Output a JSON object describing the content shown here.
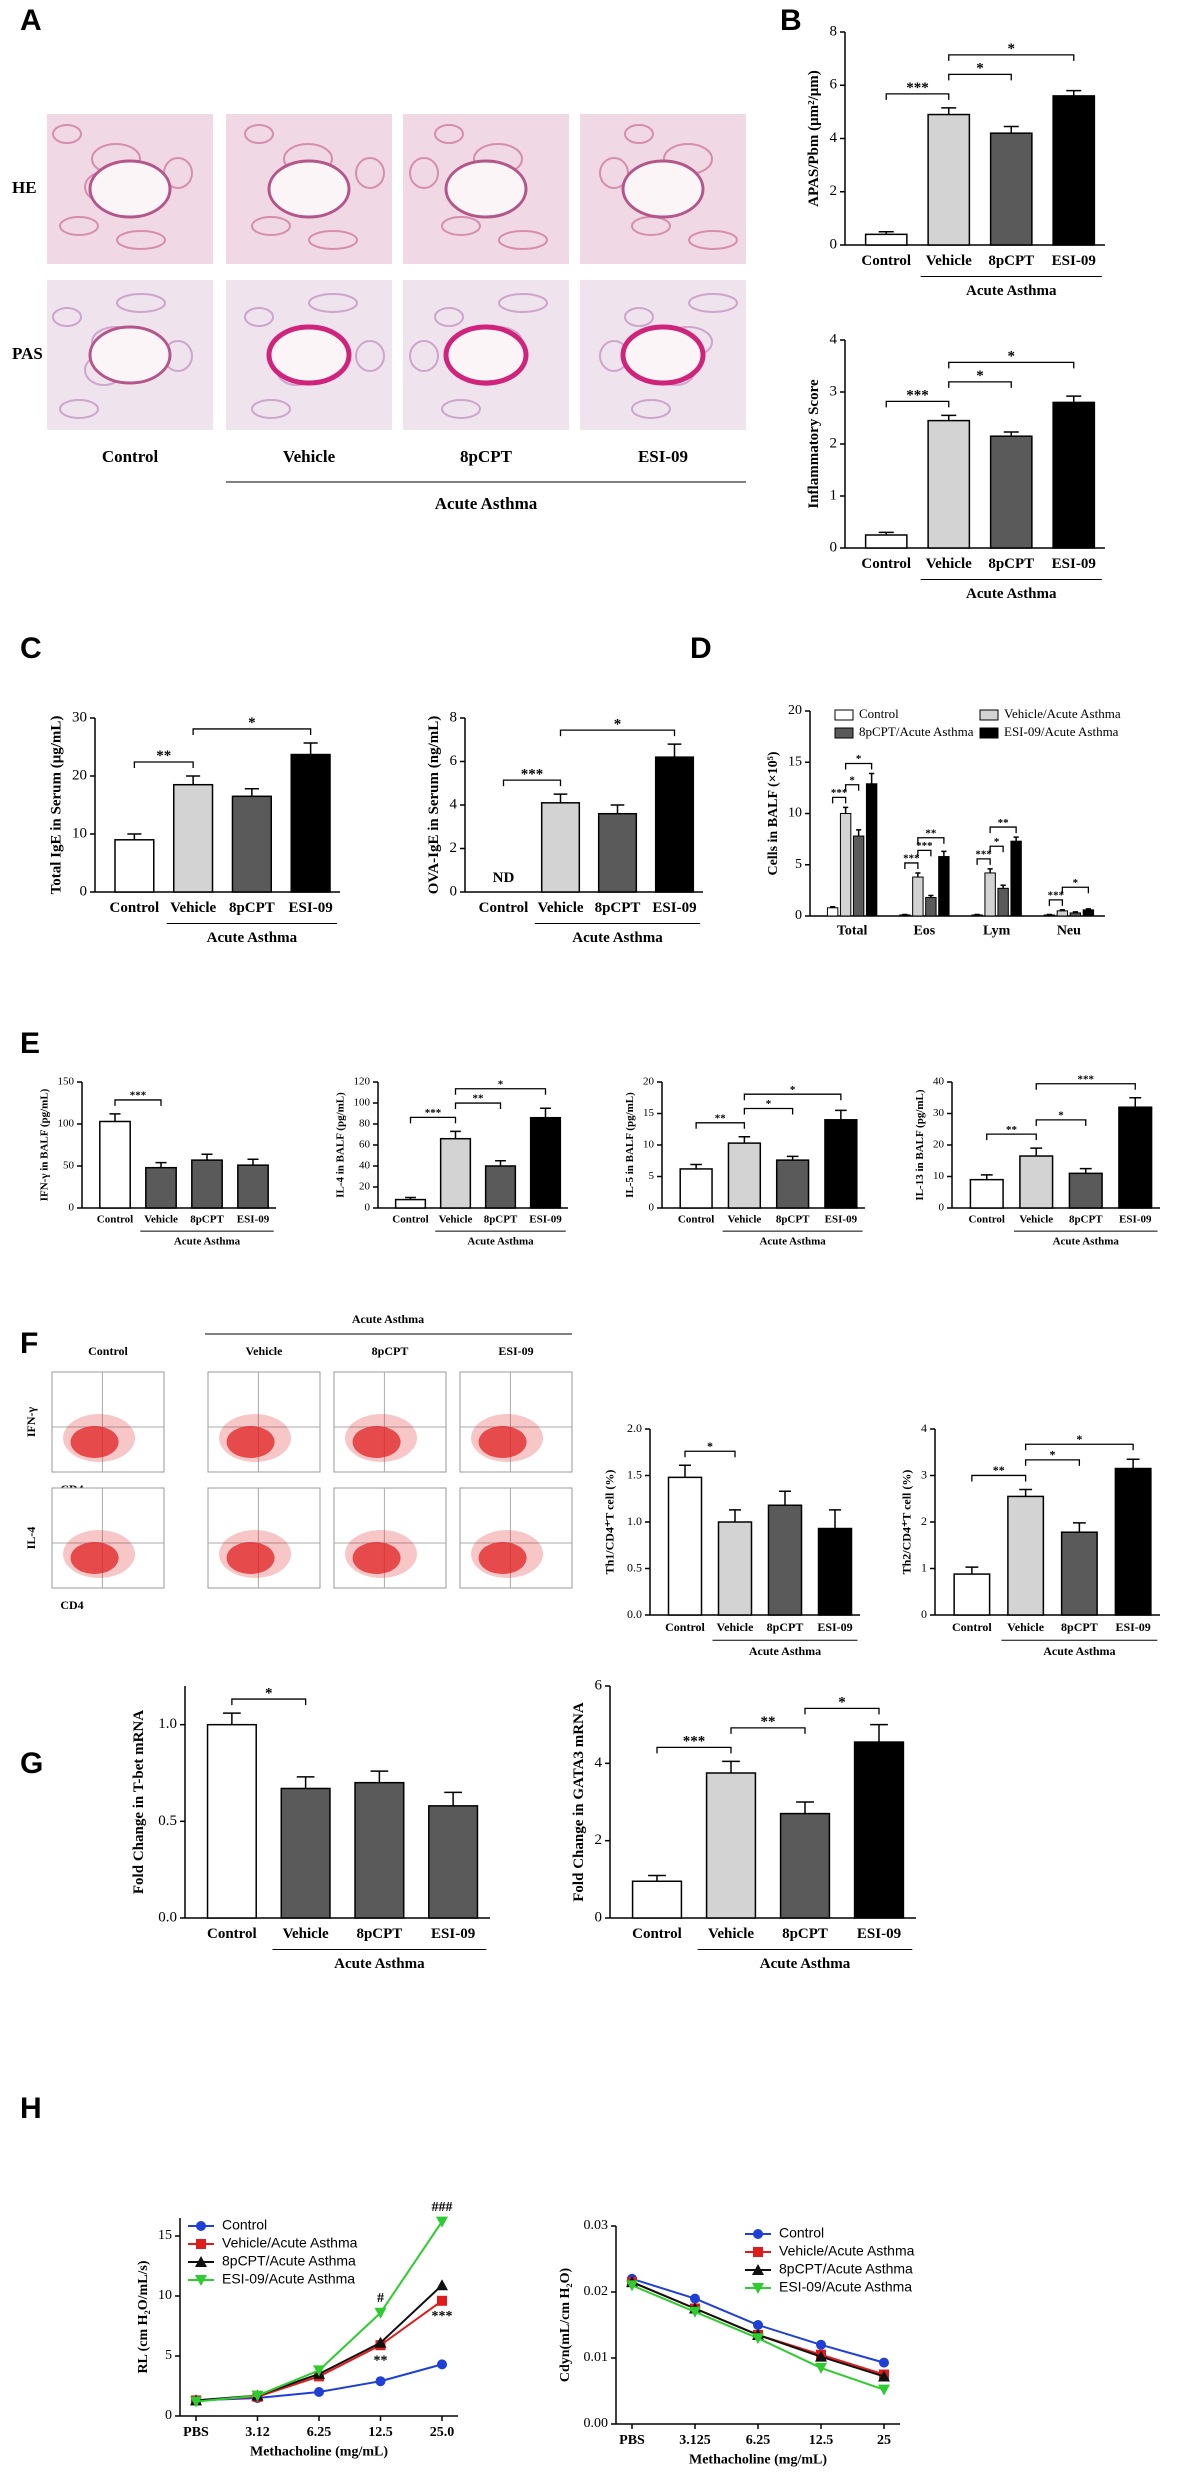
{
  "panel_letters": [
    "A",
    "B",
    "C",
    "D",
    "E",
    "F",
    "G",
    "H"
  ],
  "histology": {
    "row_labels": [
      "HE",
      "PAS"
    ],
    "column_labels": [
      "Control",
      "Vehicle",
      "8pCPT",
      "ESI-09"
    ],
    "group_label": "Acute Asthma"
  },
  "flow_cytometry": {
    "column_labels": [
      "Control",
      "Vehicle",
      "8pCPT",
      "ESI-09"
    ],
    "group_label": "Acute Asthma",
    "row_labels": [
      "IFN-γ",
      "IL-4"
    ],
    "x_label": "CD4"
  },
  "chart_data": [
    {
      "type": "bar",
      "y_label": "APAS/Pbm (μm²/μm)",
      "categories": [
        "Control",
        "Vehicle",
        "8pCPT",
        "ESI-09"
      ],
      "values": [
        0.4,
        4.9,
        4.2,
        5.6
      ],
      "errors": [
        0.1,
        0.25,
        0.25,
        0.2
      ],
      "colors": [
        "#ffffff",
        "#d3d3d3",
        "#5a5a5a",
        "#000000"
      ],
      "ylim": [
        0,
        8
      ],
      "yticks": [
        0,
        2,
        4,
        6,
        8
      ],
      "group_label": "Acute Asthma",
      "significance": [
        {
          "label": "***",
          "categories": [
            "Control",
            "Vehicle"
          ]
        },
        {
          "label": "*",
          "categories": [
            "Vehicle",
            "8pCPT"
          ]
        },
        {
          "label": "*",
          "categories": [
            "Vehicle",
            "ESI-09"
          ]
        }
      ]
    },
    {
      "type": "bar",
      "y_label": "Inflammatory Score",
      "categories": [
        "Control",
        "Vehicle",
        "8pCPT",
        "ESI-09"
      ],
      "values": [
        0.25,
        2.45,
        2.15,
        2.8
      ],
      "errors": [
        0.05,
        0.1,
        0.08,
        0.12
      ],
      "colors": [
        "#ffffff",
        "#d3d3d3",
        "#5a5a5a",
        "#000000"
      ],
      "ylim": [
        0,
        4
      ],
      "yticks": [
        0,
        1,
        2,
        3,
        4
      ],
      "group_label": "Acute Asthma",
      "significance": [
        {
          "label": "***",
          "categories": [
            "Control",
            "Vehicle"
          ]
        },
        {
          "label": "*",
          "categories": [
            "Vehicle",
            "8pCPT"
          ]
        },
        {
          "label": "*",
          "categories": [
            "Vehicle",
            "ESI-09"
          ]
        }
      ]
    },
    {
      "type": "bar",
      "y_label": "Total IgE in Serum (μg/mL)",
      "categories": [
        "Control",
        "Vehicle",
        "8pCPT",
        "ESI-09"
      ],
      "values": [
        9,
        18.5,
        16.5,
        23.7
      ],
      "errors": [
        1,
        1.5,
        1.3,
        2
      ],
      "colors": [
        "#ffffff",
        "#d3d3d3",
        "#5a5a5a",
        "#000000"
      ],
      "ylim": [
        0,
        30
      ],
      "yticks": [
        0,
        10,
        20,
        30
      ],
      "group_label": "Acute Asthma",
      "significance": [
        {
          "label": "**",
          "categories": [
            "Control",
            "Vehicle"
          ]
        },
        {
          "label": "*",
          "categories": [
            "Vehicle",
            "ESI-09"
          ]
        }
      ]
    },
    {
      "type": "bar",
      "y_label": "OVA-IgE in Serum (ng/mL)",
      "categories": [
        "Control",
        "Vehicle",
        "8pCPT",
        "ESI-09"
      ],
      "values": [
        null,
        4.1,
        3.6,
        6.2
      ],
      "value_labels": [
        "ND",
        null,
        null,
        null
      ],
      "errors": [
        null,
        0.4,
        0.4,
        0.6
      ],
      "colors": [
        "#ffffff",
        "#d3d3d3",
        "#5a5a5a",
        "#000000"
      ],
      "ylim": [
        0,
        8
      ],
      "yticks": [
        0,
        2,
        4,
        6,
        8
      ],
      "group_label": "Acute Asthma",
      "significance": [
        {
          "label": "***",
          "categories": [
            "Control",
            "Vehicle"
          ]
        },
        {
          "label": "*",
          "categories": [
            "Vehicle",
            "ESI-09"
          ]
        }
      ]
    },
    {
      "type": "grouped_bar",
      "y_label": "Cells in BALF (×10⁵)",
      "categories": [
        "Total",
        "Eos",
        "Lym",
        "Neu"
      ],
      "ylim": [
        0,
        20
      ],
      "yticks": [
        0,
        5,
        10,
        15,
        20
      ],
      "series": [
        {
          "name": "Control",
          "color": "#ffffff",
          "values": [
            0.8,
            0.1,
            0.1,
            0.1
          ],
          "errors": [
            0.1,
            0.05,
            0.05,
            0.05
          ]
        },
        {
          "name": "Vehicle/Acute Asthma",
          "color": "#d3d3d3",
          "values": [
            10,
            3.8,
            4.2,
            0.5
          ],
          "errors": [
            0.6,
            0.4,
            0.4,
            0.1
          ]
        },
        {
          "name": "8pCPT/Acute Asthma",
          "color": "#5a5a5a",
          "values": [
            7.8,
            1.8,
            2.7,
            0.3
          ],
          "errors": [
            0.6,
            0.2,
            0.3,
            0.1
          ]
        },
        {
          "name": "ESI-09/Acute Asthma",
          "color": "#000000",
          "values": [
            12.9,
            5.8,
            7.3,
            0.6
          ],
          "errors": [
            1,
            0.5,
            0.4,
            0.1
          ]
        }
      ],
      "significance": [
        {
          "label": "***",
          "category": "Total",
          "series": [
            "Control",
            "Vehicle/Acute Asthma"
          ]
        },
        {
          "label": "*",
          "category": "Total",
          "series": [
            "Vehicle/Acute Asthma",
            "8pCPT/Acute Asthma"
          ]
        },
        {
          "label": "*",
          "category": "Total",
          "series": [
            "Vehicle/Acute Asthma",
            "ESI-09/Acute Asthma"
          ]
        },
        {
          "label": "***",
          "category": "Eos",
          "series": [
            "Control",
            "Vehicle/Acute Asthma"
          ]
        },
        {
          "label": "***",
          "category": "Eos",
          "series": [
            "Vehicle/Acute Asthma",
            "8pCPT/Acute Asthma"
          ]
        },
        {
          "label": "**",
          "category": "Eos",
          "series": [
            "Vehicle/Acute Asthma",
            "ESI-09/Acute Asthma"
          ]
        },
        {
          "label": "***",
          "category": "Lym",
          "series": [
            "Control",
            "Vehicle/Acute Asthma"
          ]
        },
        {
          "label": "*",
          "category": "Lym",
          "series": [
            "Vehicle/Acute Asthma",
            "8pCPT/Acute Asthma"
          ]
        },
        {
          "label": "**",
          "category": "Lym",
          "series": [
            "Vehicle/Acute Asthma",
            "ESI-09/Acute Asthma"
          ]
        },
        {
          "label": "***",
          "category": "Neu",
          "series": [
            "Control",
            "Vehicle/Acute Asthma"
          ]
        },
        {
          "label": "*",
          "category": "Neu",
          "series": [
            "Vehicle/Acute Asthma",
            "ESI-09/Acute Asthma"
          ]
        }
      ]
    },
    {
      "type": "bar",
      "y_label": "IFN-γ in BALF (pg/mL)",
      "categories": [
        "Control",
        "Vehicle",
        "8pCPT",
        "ESI-09"
      ],
      "values": [
        103,
        48,
        57,
        51
      ],
      "errors": [
        9,
        6,
        7,
        7
      ],
      "colors": [
        "#ffffff",
        "#5a5a5a",
        "#5a5a5a",
        "#5a5a5a"
      ],
      "ylim": [
        0,
        150
      ],
      "yticks": [
        0,
        50,
        100,
        150
      ],
      "group_label": "Acute Asthma",
      "significance": [
        {
          "label": "***",
          "categories": [
            "Control",
            "Vehicle"
          ]
        }
      ]
    },
    {
      "type": "bar",
      "y_label": "IL-4 in BALF (pg/mL)",
      "categories": [
        "Control",
        "Vehicle",
        "8pCPT",
        "ESI-09"
      ],
      "values": [
        8,
        66,
        40,
        86
      ],
      "errors": [
        2,
        7,
        5,
        9
      ],
      "colors": [
        "#ffffff",
        "#d3d3d3",
        "#5a5a5a",
        "#000000"
      ],
      "ylim": [
        0,
        120
      ],
      "yticks": [
        0,
        20,
        40,
        60,
        80,
        100,
        120
      ],
      "group_label": "Acute Asthma",
      "significance": [
        {
          "label": "***",
          "categories": [
            "Control",
            "Vehicle"
          ]
        },
        {
          "label": "**",
          "categories": [
            "Vehicle",
            "8pCPT"
          ]
        },
        {
          "label": "*",
          "categories": [
            "Vehicle",
            "ESI-09"
          ]
        }
      ]
    },
    {
      "type": "bar",
      "y_label": "IL-5 in BALF (pg/mL)",
      "categories": [
        "Control",
        "Vehicle",
        "8pCPT",
        "ESI-09"
      ],
      "values": [
        6.2,
        10.3,
        7.6,
        14
      ],
      "errors": [
        0.7,
        1,
        0.6,
        1.5
      ],
      "colors": [
        "#ffffff",
        "#d3d3d3",
        "#5a5a5a",
        "#000000"
      ],
      "ylim": [
        0,
        20
      ],
      "yticks": [
        0,
        5,
        10,
        15,
        20
      ],
      "group_label": "Acute Asthma",
      "significance": [
        {
          "label": "**",
          "categories": [
            "Control",
            "Vehicle"
          ]
        },
        {
          "label": "*",
          "categories": [
            "Vehicle",
            "8pCPT"
          ]
        },
        {
          "label": "*",
          "categories": [
            "Vehicle",
            "ESI-09"
          ]
        }
      ]
    },
    {
      "type": "bar",
      "y_label": "IL-13 in BALF (pg/mL)",
      "categories": [
        "Control",
        "Vehicle",
        "8pCPT",
        "ESI-09"
      ],
      "values": [
        9,
        16.5,
        11,
        32
      ],
      "errors": [
        1.5,
        2.5,
        1.5,
        3
      ],
      "colors": [
        "#ffffff",
        "#d3d3d3",
        "#5a5a5a",
        "#000000"
      ],
      "ylim": [
        0,
        40
      ],
      "yticks": [
        0,
        10,
        20,
        30,
        40
      ],
      "group_label": "Acute Asthma",
      "significance": [
        {
          "label": "**",
          "categories": [
            "Control",
            "Vehicle"
          ]
        },
        {
          "label": "*",
          "categories": [
            "Vehicle",
            "8pCPT"
          ]
        },
        {
          "label": "***",
          "categories": [
            "Vehicle",
            "ESI-09"
          ]
        }
      ]
    },
    {
      "type": "bar",
      "y_label": "Th1/CD4⁺T cell (%)",
      "categories": [
        "Control",
        "Vehicle",
        "8pCPT",
        "ESI-09"
      ],
      "values": [
        1.48,
        1.0,
        1.18,
        0.93
      ],
      "errors": [
        0.13,
        0.13,
        0.15,
        0.2
      ],
      "colors": [
        "#ffffff",
        "#d3d3d3",
        "#5a5a5a",
        "#000000"
      ],
      "ylim": [
        0,
        2
      ],
      "yticks": [
        {
          "value": 0,
          "label": "0.0"
        },
        0.5,
        {
          "value": 1,
          "label": "1.0"
        },
        1.5,
        {
          "value": 2,
          "label": "2.0"
        }
      ],
      "group_label": "Acute Asthma",
      "significance": [
        {
          "label": "*",
          "categories": [
            "Control",
            "Vehicle"
          ]
        }
      ]
    },
    {
      "type": "bar",
      "y_label": "Th2/CD4⁺T cell (%)",
      "categories": [
        "Control",
        "Vehicle",
        "8pCPT",
        "ESI-09"
      ],
      "values": [
        0.88,
        2.55,
        1.78,
        3.15
      ],
      "errors": [
        0.15,
        0.15,
        0.2,
        0.2
      ],
      "colors": [
        "#ffffff",
        "#d3d3d3",
        "#5a5a5a",
        "#000000"
      ],
      "ylim": [
        0,
        4
      ],
      "yticks": [
        0,
        1,
        2,
        3,
        4
      ],
      "group_label": "Acute Asthma",
      "significance": [
        {
          "label": "**",
          "categories": [
            "Control",
            "Vehicle"
          ]
        },
        {
          "label": "*",
          "categories": [
            "Vehicle",
            "8pCPT"
          ]
        },
        {
          "label": "*",
          "categories": [
            "Vehicle",
            "ESI-09"
          ]
        }
      ]
    },
    {
      "type": "bar",
      "y_label": "Fold Change in T-bet mRNA",
      "categories": [
        "Control",
        "Vehicle",
        "8pCPT",
        "ESI-09"
      ],
      "values": [
        1.0,
        0.67,
        0.7,
        0.58
      ],
      "errors": [
        0.06,
        0.06,
        0.06,
        0.07
      ],
      "colors": [
        "#ffffff",
        "#5a5a5a",
        "#5a5a5a",
        "#5a5a5a"
      ],
      "ylim": [
        0,
        1.2
      ],
      "yticks": [
        {
          "value": 0,
          "label": "0.0"
        },
        0.5,
        {
          "value": 1,
          "label": "1.0"
        }
      ],
      "group_label": "Acute Asthma",
      "significance": [
        {
          "label": "*",
          "categories": [
            "Control",
            "Vehicle"
          ]
        }
      ]
    },
    {
      "type": "bar",
      "y_label": "Fold Change in GATA3 mRNA",
      "categories": [
        "Control",
        "Vehicle",
        "8pCPT",
        "ESI-09"
      ],
      "values": [
        0.95,
        3.75,
        2.7,
        4.55
      ],
      "errors": [
        0.15,
        0.3,
        0.3,
        0.45
      ],
      "colors": [
        "#ffffff",
        "#d3d3d3",
        "#5a5a5a",
        "#000000"
      ],
      "ylim": [
        0,
        6
      ],
      "yticks": [
        0,
        2,
        4,
        6
      ],
      "group_label": "Acute Asthma",
      "significance": [
        {
          "label": "***",
          "categories": [
            "Control",
            "Vehicle"
          ]
        },
        {
          "label": "**",
          "categories": [
            "Vehicle",
            "8pCPT"
          ]
        },
        {
          "label": "*",
          "categories": [
            "8pCPT",
            "ESI-09"
          ]
        }
      ]
    },
    {
      "type": "line",
      "y_label": "RL (cm H₂O/mL/s)",
      "x_label": "Methacholine (mg/mL)",
      "categories": [
        "PBS",
        "3.12",
        "6.25",
        "12.5",
        "25.0"
      ],
      "ylim": [
        0,
        16.5
      ],
      "yticks": [
        0,
        5,
        10,
        15
      ],
      "legend": "upper left",
      "series": [
        {
          "name": "Control",
          "color": "#1f3fd6",
          "marker": "circle",
          "values": [
            1.3,
            1.5,
            2.0,
            2.9,
            4.3
          ]
        },
        {
          "name": "Vehicle/Acute Asthma",
          "color": "#e01b1b",
          "marker": "square",
          "values": [
            1.3,
            1.6,
            3.3,
            5.9,
            9.6
          ]
        },
        {
          "name": "8pCPT/Acute Asthma",
          "color": "#111111",
          "marker": "triangle",
          "values": [
            1.3,
            1.7,
            3.5,
            6.1,
            10.9
          ]
        },
        {
          "name": "ESI-09/Acute Asthma",
          "color": "#2ecc2e",
          "marker": "triangle-down",
          "values": [
            1.2,
            1.7,
            3.8,
            8.6,
            16.2
          ]
        }
      ],
      "annotations": [
        {
          "label": "#",
          "series": 3,
          "index": 3,
          "position": "above"
        },
        {
          "label": "**",
          "series": 1,
          "index": 3,
          "position": "below"
        },
        {
          "label": "###",
          "series": 3,
          "index": 4,
          "position": "above"
        },
        {
          "label": "***",
          "series": 1,
          "index": 4,
          "position": "below"
        }
      ]
    },
    {
      "type": "line",
      "y_label": "Cdyn(mL/cm H₂O)",
      "x_label": "Methacholine (mg/mL)",
      "categories": [
        "PBS",
        "3.125",
        "6.25",
        "12.5",
        "25"
      ],
      "ylim": [
        0,
        0.03
      ],
      "yticks": [
        {
          "value": 0,
          "label": "0.00"
        },
        0.01,
        0.02,
        0.03
      ],
      "legend": "upper right",
      "series": [
        {
          "name": "Control",
          "color": "#1f3fd6",
          "marker": "circle",
          "values": [
            0.022,
            0.019,
            0.015,
            0.012,
            0.0093
          ]
        },
        {
          "name": "Vehicle/Acute Asthma",
          "color": "#e01b1b",
          "marker": "square",
          "values": [
            0.0215,
            0.0175,
            0.0135,
            0.0105,
            0.0075
          ]
        },
        {
          "name": "8pCPT/Acute Asthma",
          "color": "#111111",
          "marker": "triangle",
          "values": [
            0.0215,
            0.0175,
            0.0135,
            0.0102,
            0.0072
          ]
        },
        {
          "name": "ESI-09/Acute Asthma",
          "color": "#2ecc2e",
          "marker": "triangle-down",
          "values": [
            0.021,
            0.017,
            0.013,
            0.0085,
            0.0052
          ]
        }
      ]
    }
  ]
}
